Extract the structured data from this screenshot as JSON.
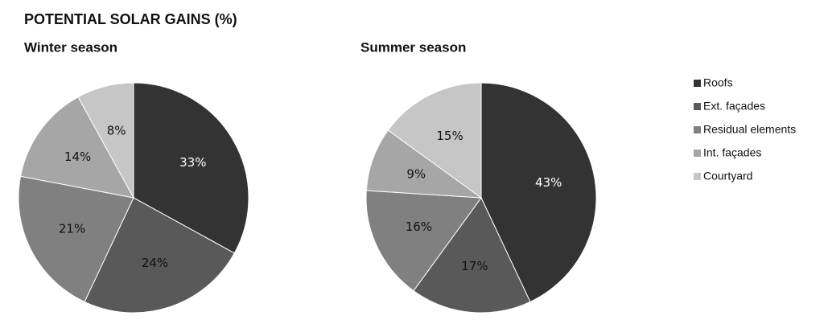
{
  "chart_data": {
    "type": "pie",
    "title": "POTENTIAL SOLAR GAINS (%)",
    "categories": [
      "Roofs",
      "Ext. façades",
      "Residual elements",
      "Int. façades",
      "Courtyard"
    ],
    "colors": [
      "#333333",
      "#595959",
      "#808080",
      "#a6a6a6",
      "#c6c6c6"
    ],
    "series": [
      {
        "name": "Winter season",
        "values": [
          33,
          24,
          21,
          14,
          8
        ],
        "value_labels": [
          "33%",
          "24%",
          "21%",
          "14%",
          "8%"
        ]
      },
      {
        "name": "Summer season",
        "values": [
          43,
          17,
          16,
          9,
          15
        ],
        "value_labels": [
          "43%",
          "17%",
          "16%",
          "9%",
          "15%"
        ]
      }
    ]
  }
}
